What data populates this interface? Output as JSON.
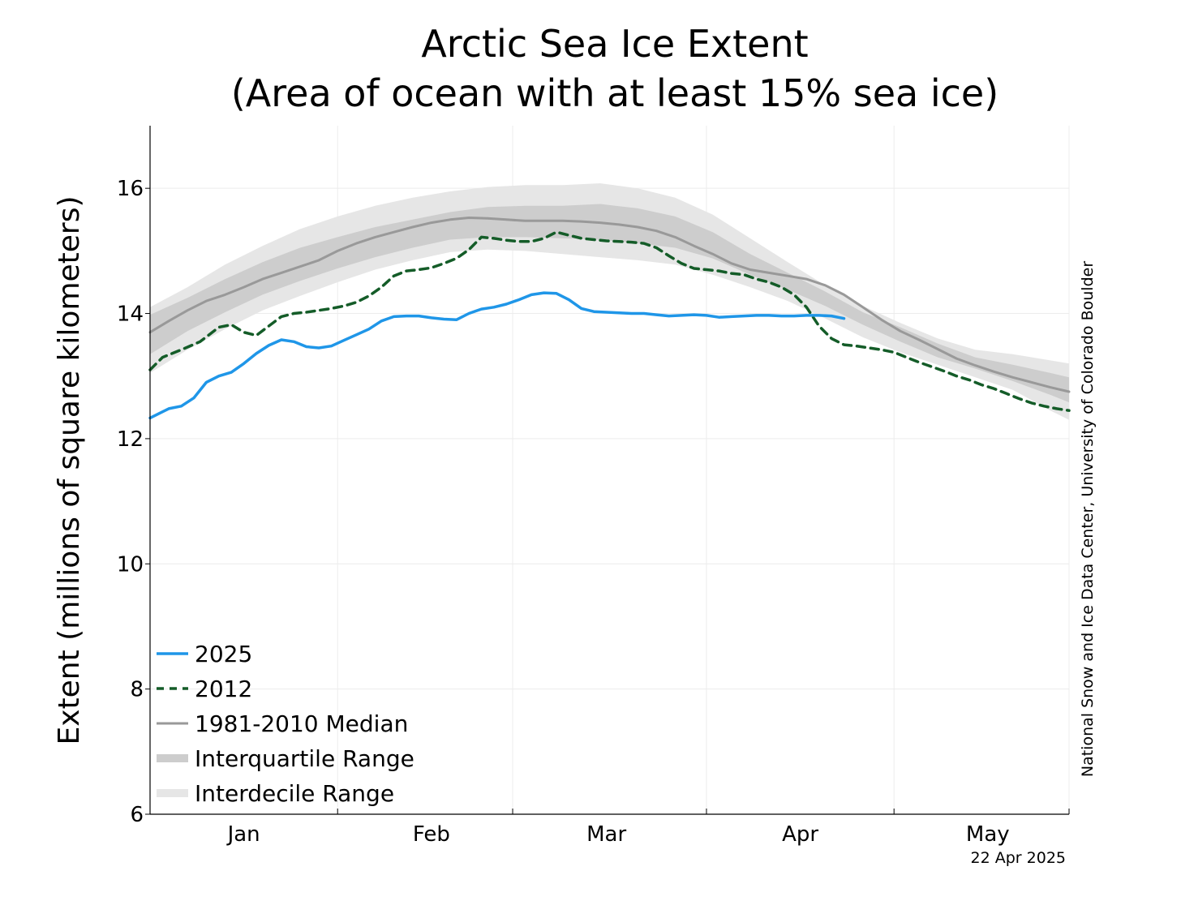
{
  "chart_data": {
    "type": "line",
    "title": "Arctic Sea Ice Extent",
    "subtitle": "(Area of ocean with at least 15% sea ice)",
    "xlabel": "",
    "ylabel": "Extent (millions of square kilometers)",
    "ylim": [
      6,
      17
    ],
    "xlim": [
      0,
      147
    ],
    "yticks": [
      6,
      8,
      10,
      12,
      14,
      16
    ],
    "month_ticks": [
      {
        "label": "Jan",
        "at": 15
      },
      {
        "label": "Feb",
        "at": 45
      },
      {
        "label": "Mar",
        "at": 73
      },
      {
        "label": "Apr",
        "at": 104
      },
      {
        "label": "May",
        "at": 134
      }
    ],
    "month_boundaries": [
      0,
      30,
      58,
      89,
      119,
      147
    ],
    "grid": true,
    "legend_position": "bottom-left",
    "credit": "National Snow and Ice Data Center, University of Colorado Boulder",
    "date_stamp": "22 Apr 2025",
    "colors": {
      "s2025": "#1f96e8",
      "s2012": "#145c28",
      "median": "#999999",
      "interquartile": "#cdcdcd",
      "interdecile": "#e6e6e6"
    },
    "legend": [
      {
        "label": "2025",
        "style": "line-2025"
      },
      {
        "label": "2012",
        "style": "dash-2012"
      },
      {
        "label": "1981-2010 Median",
        "style": "line-median"
      },
      {
        "label": "Interquartile Range",
        "style": "band-iq"
      },
      {
        "label": "Interdecile Range",
        "style": "band-id"
      }
    ],
    "series": [
      {
        "name": "2025",
        "x": [
          0,
          3,
          5,
          7,
          9,
          11,
          13,
          15,
          17,
          19,
          21,
          23,
          25,
          27,
          29,
          31,
          33,
          35,
          37,
          39,
          41,
          43,
          45,
          47,
          49,
          51,
          53,
          55,
          57,
          59,
          61,
          63,
          65,
          67,
          69,
          71,
          73,
          75,
          77,
          79,
          81,
          83,
          85,
          87,
          89,
          91,
          93,
          95,
          97,
          99,
          101,
          103,
          105,
          107,
          109,
          111
        ],
        "values": [
          12.33,
          12.48,
          12.52,
          12.65,
          12.9,
          13.0,
          13.06,
          13.2,
          13.36,
          13.49,
          13.58,
          13.55,
          13.47,
          13.45,
          13.48,
          13.57,
          13.66,
          13.75,
          13.88,
          13.95,
          13.96,
          13.96,
          13.93,
          13.91,
          13.9,
          14.0,
          14.07,
          14.1,
          14.15,
          14.22,
          14.3,
          14.33,
          14.32,
          14.22,
          14.08,
          14.03,
          14.02,
          14.01,
          14.0,
          14.0,
          13.98,
          13.96,
          13.97,
          13.98,
          13.97,
          13.94,
          13.95,
          13.96,
          13.97,
          13.97,
          13.96,
          13.96,
          13.97,
          13.97,
          13.96,
          13.92
        ]
      },
      {
        "name": "2012",
        "x": [
          0,
          2,
          5,
          8,
          11,
          13,
          15,
          17,
          19,
          21,
          23,
          25,
          27,
          29,
          31,
          33,
          35,
          37,
          39,
          41,
          43,
          45,
          47,
          49,
          51,
          53,
          55,
          57,
          59,
          61,
          63,
          65,
          67,
          69,
          71,
          73,
          75,
          77,
          79,
          81,
          83,
          85,
          87,
          89,
          91,
          93,
          95,
          97,
          99,
          101,
          103,
          105,
          107,
          109,
          111,
          113,
          115,
          117,
          119,
          121,
          123,
          125,
          127,
          129,
          131,
          133,
          135,
          137,
          139,
          141,
          143,
          145,
          147
        ],
        "values": [
          13.1,
          13.3,
          13.42,
          13.55,
          13.78,
          13.82,
          13.7,
          13.65,
          13.8,
          13.95,
          14.0,
          14.02,
          14.05,
          14.08,
          14.12,
          14.18,
          14.28,
          14.42,
          14.6,
          14.68,
          14.7,
          14.73,
          14.8,
          14.88,
          15.02,
          15.22,
          15.2,
          15.17,
          15.15,
          15.15,
          15.2,
          15.3,
          15.25,
          15.2,
          15.18,
          15.16,
          15.15,
          15.14,
          15.12,
          15.05,
          14.92,
          14.8,
          14.72,
          14.7,
          14.68,
          14.64,
          14.62,
          14.55,
          14.5,
          14.42,
          14.3,
          14.1,
          13.8,
          13.6,
          13.5,
          13.48,
          13.45,
          13.42,
          13.38,
          13.3,
          13.22,
          13.15,
          13.08,
          13.0,
          12.94,
          12.86,
          12.8,
          12.72,
          12.64,
          12.57,
          12.52,
          12.48,
          12.45
        ]
      },
      {
        "name": "1981-2010 Median",
        "x": [
          0,
          3,
          6,
          9,
          12,
          15,
          18,
          21,
          24,
          27,
          30,
          33,
          36,
          39,
          42,
          45,
          48,
          51,
          54,
          57,
          60,
          63,
          66,
          69,
          72,
          75,
          78,
          81,
          84,
          87,
          90,
          93,
          96,
          99,
          102,
          105,
          108,
          111,
          114,
          117,
          120,
          123,
          126,
          129,
          132,
          135,
          138,
          141,
          144,
          147
        ],
        "values": [
          13.7,
          13.88,
          14.05,
          14.2,
          14.3,
          14.42,
          14.55,
          14.65,
          14.75,
          14.85,
          15.0,
          15.12,
          15.22,
          15.3,
          15.38,
          15.45,
          15.5,
          15.53,
          15.52,
          15.5,
          15.48,
          15.48,
          15.48,
          15.47,
          15.45,
          15.42,
          15.38,
          15.32,
          15.22,
          15.08,
          14.95,
          14.8,
          14.7,
          14.65,
          14.6,
          14.55,
          14.45,
          14.3,
          14.1,
          13.9,
          13.72,
          13.58,
          13.43,
          13.28,
          13.17,
          13.07,
          12.98,
          12.9,
          12.82,
          12.75
        ]
      }
    ],
    "bands": [
      {
        "name": "Interdecile Range",
        "x": [
          0,
          6,
          12,
          18,
          24,
          30,
          36,
          42,
          48,
          54,
          60,
          66,
          72,
          78,
          84,
          90,
          96,
          102,
          108,
          114,
          120,
          126,
          132,
          138,
          144,
          147
        ],
        "low": [
          13.05,
          13.42,
          13.75,
          14.05,
          14.28,
          14.5,
          14.7,
          14.85,
          14.98,
          15.02,
          15.0,
          14.95,
          14.9,
          14.85,
          14.78,
          14.62,
          14.42,
          14.2,
          13.92,
          13.62,
          13.38,
          13.18,
          12.98,
          12.78,
          12.45,
          12.3
        ],
        "high": [
          14.1,
          14.42,
          14.78,
          15.08,
          15.35,
          15.55,
          15.72,
          15.85,
          15.95,
          16.02,
          16.05,
          16.05,
          16.08,
          16.0,
          15.85,
          15.58,
          15.2,
          14.82,
          14.45,
          14.12,
          13.85,
          13.6,
          13.42,
          13.35,
          13.25,
          13.2
        ]
      },
      {
        "name": "Interquartile Range",
        "x": [
          0,
          6,
          12,
          18,
          24,
          30,
          36,
          42,
          48,
          54,
          60,
          66,
          72,
          78,
          84,
          90,
          96,
          102,
          108,
          114,
          120,
          126,
          132,
          138,
          144,
          147
        ],
        "low": [
          13.35,
          13.72,
          14.02,
          14.3,
          14.52,
          14.72,
          14.9,
          15.05,
          15.18,
          15.22,
          15.22,
          15.2,
          15.18,
          15.12,
          15.05,
          14.88,
          14.62,
          14.38,
          14.12,
          13.82,
          13.55,
          13.3,
          13.12,
          12.92,
          12.7,
          12.58
        ],
        "high": [
          13.98,
          14.25,
          14.55,
          14.82,
          15.05,
          15.22,
          15.38,
          15.5,
          15.62,
          15.7,
          15.72,
          15.72,
          15.75,
          15.68,
          15.55,
          15.3,
          14.95,
          14.65,
          14.35,
          14.02,
          13.78,
          13.52,
          13.3,
          13.18,
          13.05,
          12.98
        ]
      }
    ]
  }
}
